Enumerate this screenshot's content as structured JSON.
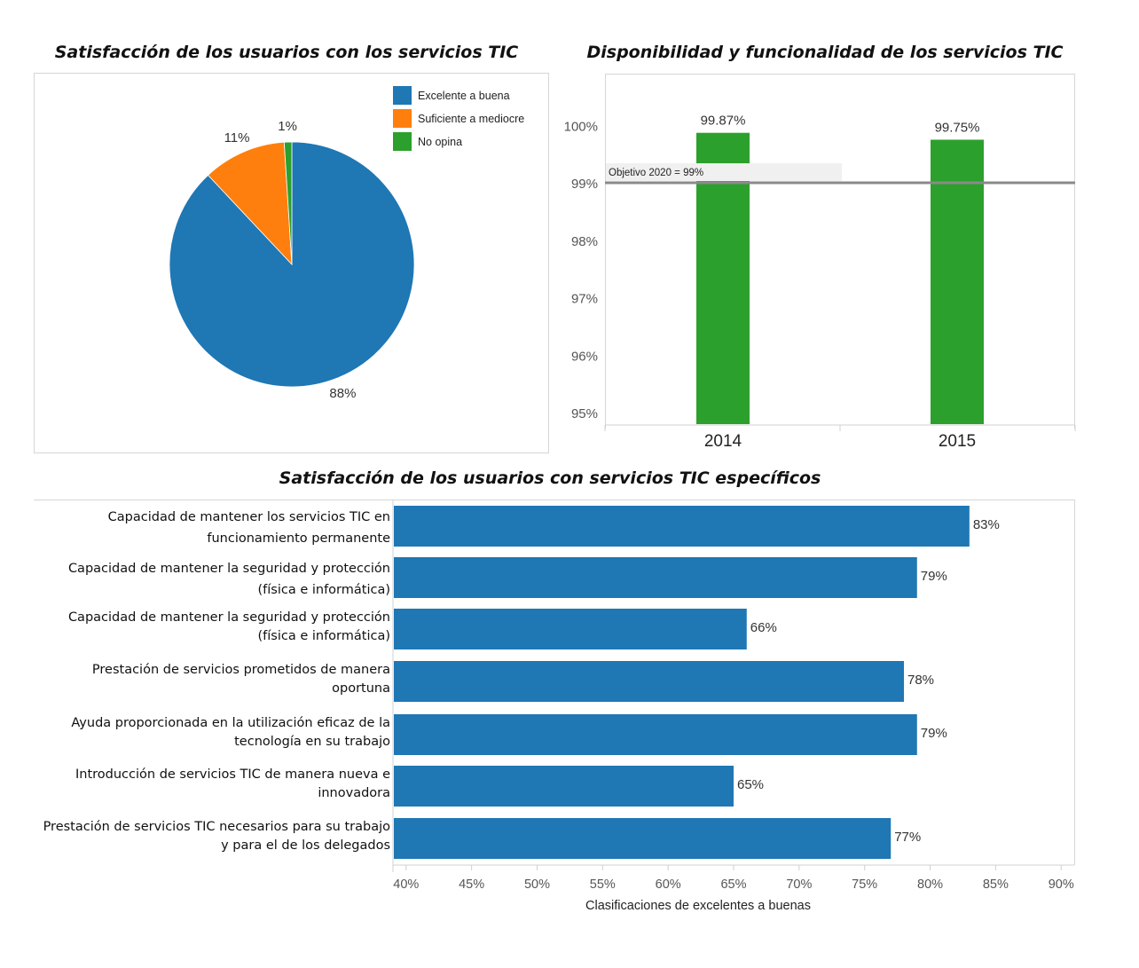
{
  "pie_title": "Satisfacción de los usuarios con los servicios TIC",
  "bar_title": "Disponibilidad y funcionalidad de los servicios TIC",
  "hbar_title": "Satisfacción de los usuarios con servicios TIC específicos",
  "colors": {
    "blue": "#1f77b4",
    "orange": "#ff7f0e",
    "green": "#2ca02c",
    "target_line": "#8a8a8a"
  },
  "chart_data": [
    {
      "type": "pie",
      "title": "Satisfacción de los usuarios con los servicios TIC",
      "slices": [
        {
          "label": "Excelente a buena",
          "value": 88,
          "display": "88%",
          "color": "#1f77b4"
        },
        {
          "label": "Suficiente a mediocre",
          "value": 11,
          "display": "11%",
          "color": "#ff7f0e"
        },
        {
          "label": "No opina",
          "value": 1,
          "display": "1%",
          "color": "#2ca02c"
        }
      ],
      "legend": "top-right"
    },
    {
      "type": "bar",
      "title": "Disponibilidad y funcionalidad de los servicios TIC",
      "categories": [
        "2014",
        "2015"
      ],
      "values": [
        99.87,
        99.75
      ],
      "value_labels": [
        "99.87%",
        "99.75%"
      ],
      "ylim": [
        94.8,
        100.9
      ],
      "yticks": [
        95,
        96,
        97,
        98,
        99,
        100
      ],
      "ytick_labels": [
        "95%",
        "96%",
        "97%",
        "98%",
        "99%",
        "100%"
      ],
      "target": {
        "value": 99,
        "label": "Objetivo 2020 = 99%"
      },
      "color": "#2ca02c"
    },
    {
      "type": "bar",
      "orientation": "horizontal",
      "title": "Satisfacción de los usuarios con servicios TIC específicos",
      "categories": [
        "Capacidad de mantener los servicios TIC en funcionamiento permanente",
        "Capacidad de mantener la seguridad y protección (física e informática)",
        "Capacidad de mantener la seguridad y protección (física e informática)",
        "Prestación de servicios prometidos de manera oportuna",
        "Ayuda proporcionada en la utilización eficaz de la tecnología en su trabajo",
        "Introducción de servicios TIC de manera nueva e innovadora",
        "Prestación de servicios TIC necesarios para su trabajo y para el de los delegados"
      ],
      "values": [
        83,
        79,
        66,
        78,
        79,
        65,
        77
      ],
      "value_labels": [
        "83%",
        "79%",
        "66%",
        "78%",
        "79%",
        "65%",
        "77%"
      ],
      "xlim": [
        39,
        91
      ],
      "xticks": [
        40,
        45,
        50,
        55,
        60,
        65,
        70,
        75,
        80,
        85,
        90
      ],
      "xtick_labels": [
        "40%",
        "45%",
        "50%",
        "55%",
        "60%",
        "65%",
        "70%",
        "75%",
        "80%",
        "85%",
        "90%"
      ],
      "xlabel": "Clasificaciones de excelentes a buenas",
      "color": "#1f77b4"
    }
  ]
}
